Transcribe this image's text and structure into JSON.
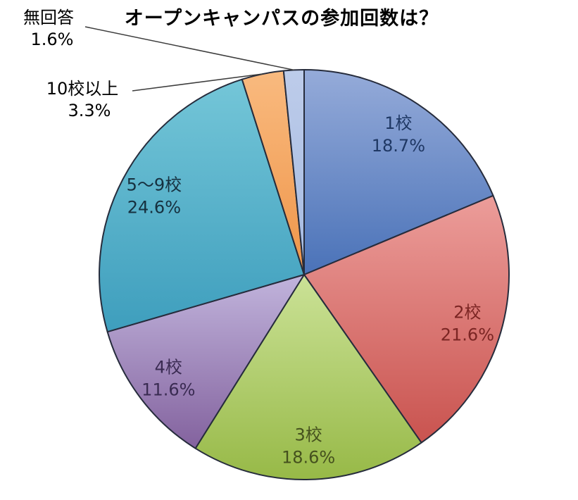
{
  "chart_data": {
    "type": "pie",
    "title": "オープンキャンパスの参加回数は？",
    "unit": "%",
    "total": 100.0,
    "direction": "clockwise",
    "start_angle_deg": 0,
    "legend_position": "none",
    "categories": [
      "1校",
      "2校",
      "3校",
      "4校",
      "5〜9校",
      "10校以上",
      "無回答"
    ],
    "values": [
      18.7,
      21.6,
      18.6,
      11.6,
      24.6,
      3.3,
      1.6
    ],
    "slices": [
      {
        "label": "1校",
        "value": 18.7,
        "display": "18.7%",
        "color_light": "#95abd9",
        "color_dark": "#4a72b8",
        "text_color": "#1f3864",
        "placement": "inside"
      },
      {
        "label": "2校",
        "value": 21.6,
        "display": "21.6%",
        "color_light": "#ec9d9a",
        "color_dark": "#c9534f",
        "text_color": "#7b2523",
        "placement": "inside"
      },
      {
        "label": "3校",
        "value": 18.6,
        "display": "18.6%",
        "color_light": "#cbe297",
        "color_dark": "#97b947",
        "text_color": "#45511e",
        "placement": "inside"
      },
      {
        "label": "4校",
        "value": 11.6,
        "display": "11.6%",
        "color_light": "#c1b4dc",
        "color_dark": "#83629e",
        "text_color": "#3a2b52",
        "placement": "inside"
      },
      {
        "label": "5〜9校",
        "value": 24.6,
        "display": "24.6%",
        "color_light": "#74c6d8",
        "color_dark": "#3e9ebd",
        "text_color": "#16303f",
        "placement": "inside"
      },
      {
        "label": "10校以上",
        "value": 3.3,
        "display": "3.3%",
        "color_light": "#f9ba7f",
        "color_dark": "#ef9549",
        "text_color": "#000000",
        "placement": "outside",
        "label_xy": [
          117,
          127
        ],
        "pct_xy": [
          127,
          158
        ],
        "leader_start": [
          188,
          129
        ]
      },
      {
        "label": "無回答",
        "value": 1.6,
        "display": "1.6%",
        "color_light": "#bdccea",
        "color_dark": "#a6bbe2",
        "text_color": "#000000",
        "placement": "outside",
        "label_xy": [
          69,
          26
        ],
        "pct_xy": [
          74,
          57
        ],
        "leader_start": [
          121,
          38
        ]
      }
    ],
    "style": {
      "background": "#ffffff",
      "slice_border_color": "#262c3c",
      "slice_border_width": 2,
      "leader_line_color": "#3d3d3d",
      "leader_line_width": 1.5,
      "inside_label_radius_fraction": 0.83,
      "center_xy": [
        432,
        390
      ],
      "radius": 291
    }
  }
}
